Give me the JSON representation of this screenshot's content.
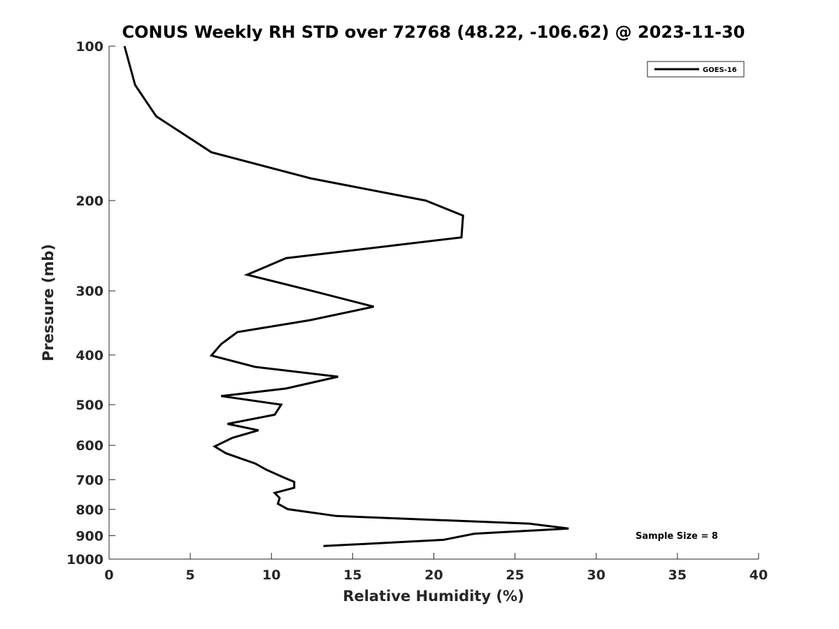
{
  "chart_data": {
    "type": "line",
    "title": "CONUS Weekly RH STD over 72768 (48.22, -106.62) @ 2023-11-30",
    "xlabel": "Relative Humidity (%)",
    "ylabel": "Pressure (mb)",
    "xlim": [
      0,
      40
    ],
    "ylim": [
      100,
      1000
    ],
    "y_scale": "log",
    "y_reversed": true,
    "x_ticks": [
      0,
      5,
      10,
      15,
      20,
      25,
      30,
      35,
      40
    ],
    "x_tick_labels": [
      "0",
      "5",
      "10",
      "15",
      "20",
      "25",
      "30",
      "35",
      "40"
    ],
    "y_ticks": [
      100,
      200,
      300,
      400,
      500,
      600,
      700,
      800,
      900,
      1000
    ],
    "y_tick_labels": [
      "100",
      "200",
      "300",
      "400",
      "500",
      "600",
      "700",
      "800",
      "900",
      "1000"
    ],
    "grid": false,
    "legend_position": "top-right",
    "series": [
      {
        "name": "GOES-16",
        "color": "#000000",
        "points": [
          [
            0.95,
            100
          ],
          [
            1.6,
            119
          ],
          [
            2.9,
            137
          ],
          [
            6.3,
            161
          ],
          [
            12.4,
            181
          ],
          [
            19.5,
            200
          ],
          [
            21.8,
            214
          ],
          [
            21.7,
            236
          ],
          [
            10.9,
            259
          ],
          [
            8.5,
            279
          ],
          [
            12.5,
            300
          ],
          [
            16.3,
            322
          ],
          [
            12.4,
            342
          ],
          [
            7.9,
            361
          ],
          [
            6.9,
            381
          ],
          [
            6.3,
            401
          ],
          [
            9.0,
            422
          ],
          [
            14.1,
            441
          ],
          [
            10.9,
            465
          ],
          [
            6.9,
            481
          ],
          [
            10.6,
            500
          ],
          [
            10.2,
            523
          ],
          [
            7.3,
            545
          ],
          [
            9.2,
            561
          ],
          [
            7.6,
            580
          ],
          [
            6.5,
            603
          ],
          [
            7.2,
            622
          ],
          [
            9.0,
            651
          ],
          [
            9.7,
            670
          ],
          [
            10.7,
            692
          ],
          [
            11.4,
            707
          ],
          [
            11.4,
            726
          ],
          [
            10.2,
            743
          ],
          [
            10.5,
            760
          ],
          [
            10.4,
            780
          ],
          [
            11.0,
            799
          ],
          [
            14.0,
            824
          ],
          [
            25.9,
            853
          ],
          [
            28.3,
            872
          ],
          [
            22.5,
            892
          ],
          [
            20.6,
            917
          ],
          [
            13.2,
            943
          ]
        ]
      }
    ],
    "annotations": [
      "Sample Size = 8"
    ]
  }
}
